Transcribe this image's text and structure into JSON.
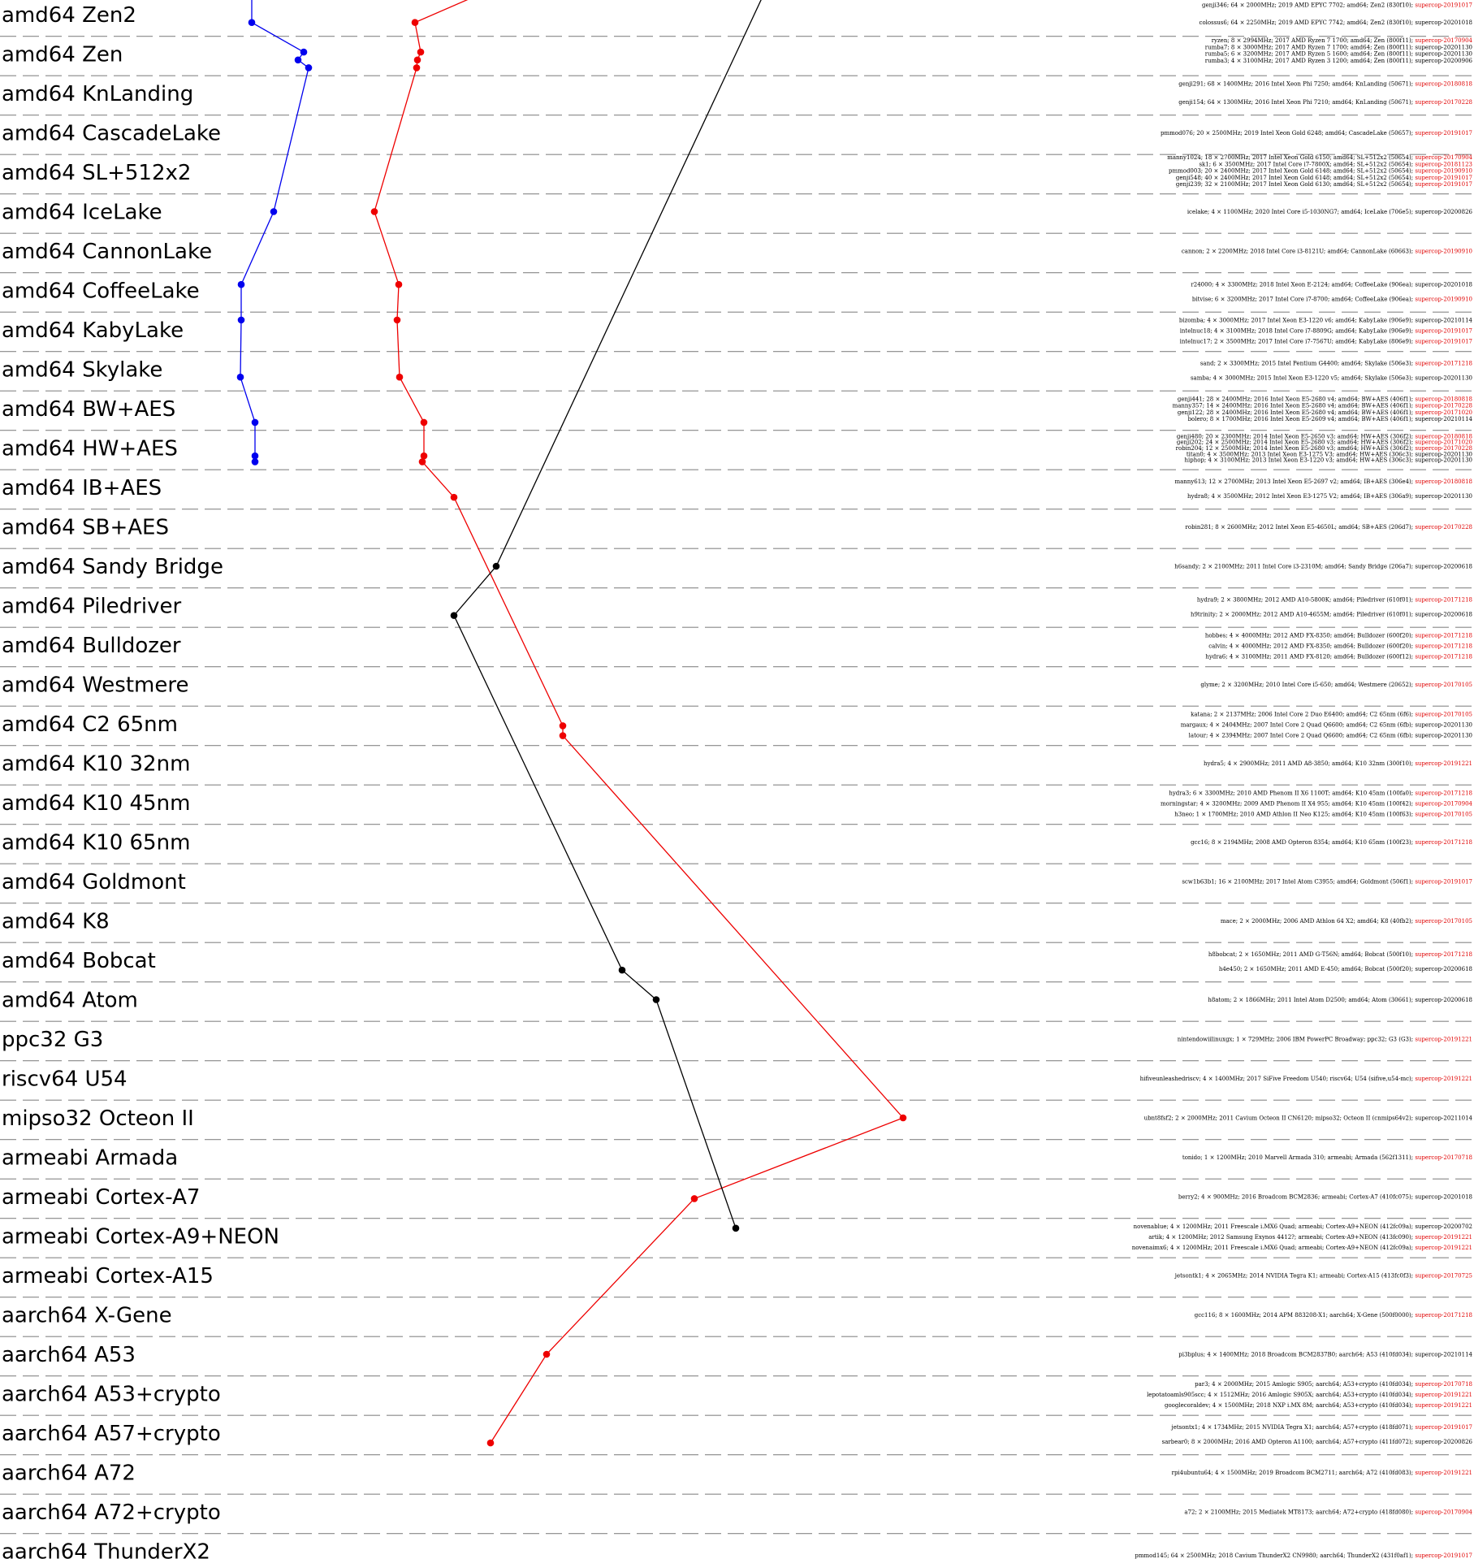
{
  "chart_data": {
    "type": "line",
    "categories": [
      "amd64 Zen2",
      "amd64 Zen",
      "amd64 KnLanding",
      "amd64 CascadeLake",
      "amd64 SL+512x2",
      "amd64 IceLake",
      "amd64 CannonLake",
      "amd64 CoffeeLake",
      "amd64 KabyLake",
      "amd64 Skylake",
      "amd64 BW+AES",
      "amd64 HW+AES",
      "amd64 IB+AES",
      "amd64 SB+AES",
      "amd64 Sandy Bridge",
      "amd64 Piledriver",
      "amd64 Bulldozer",
      "amd64 Westmere",
      "amd64 C2 65nm",
      "amd64 K10 32nm",
      "amd64 K10 45nm",
      "amd64 K10 65nm",
      "amd64 Goldmont",
      "amd64 K8",
      "amd64 Bobcat",
      "amd64 Atom",
      "ppc32 G3",
      "riscv64 U54",
      "mipso32 Octeon II",
      "armeabi Armada",
      "armeabi Cortex-A7",
      "armeabi Cortex-A9+NEON",
      "armeabi Cortex-A15",
      "aarch64 X-Gene",
      "aarch64 A53",
      "aarch64 A53+crypto",
      "aarch64 A57+crypto",
      "aarch64 A72",
      "aarch64 A72+crypto",
      "aarch64 ThunderX2"
    ],
    "series": [
      {
        "color": "#0000ee",
        "points": [
          {
            "c": 0,
            "o": -0.5,
            "v": 310
          },
          {
            "c": 0,
            "o": 0.2,
            "v": 310
          },
          {
            "c": 1,
            "o": -0.05,
            "v": 374
          },
          {
            "c": 1,
            "o": 0.15,
            "v": 367
          },
          {
            "c": 1,
            "o": 0.35,
            "v": 380
          },
          {
            "c": 5,
            "o": 0.0,
            "v": 337
          },
          {
            "c": 7,
            "o": -0.15,
            "v": 297
          },
          {
            "c": 8,
            "o": -0.25,
            "v": 297
          },
          {
            "c": 9,
            "o": 0.2,
            "v": 296
          },
          {
            "c": 10,
            "o": 0.35,
            "v": 314
          },
          {
            "c": 11,
            "o": 0.2,
            "v": 314
          },
          {
            "c": 11,
            "o": 0.35,
            "v": 314
          }
        ]
      },
      {
        "color": "#ee0000",
        "points": [
          {
            "c": 0,
            "o": -0.5,
            "v": 589
          },
          {
            "c": 0,
            "o": 0.2,
            "v": 511
          },
          {
            "c": 1,
            "o": -0.05,
            "v": 518
          },
          {
            "c": 1,
            "o": 0.15,
            "v": 514
          },
          {
            "c": 1,
            "o": 0.35,
            "v": 513
          },
          {
            "c": 5,
            "o": 0.0,
            "v": 461
          },
          {
            "c": 7,
            "o": -0.15,
            "v": 491
          },
          {
            "c": 8,
            "o": -0.25,
            "v": 489
          },
          {
            "c": 9,
            "o": 0.2,
            "v": 492
          },
          {
            "c": 10,
            "o": 0.35,
            "v": 522
          },
          {
            "c": 11,
            "o": 0.2,
            "v": 522
          },
          {
            "c": 11,
            "o": 0.35,
            "v": 520
          },
          {
            "c": 12,
            "o": 0.25,
            "v": 559
          },
          {
            "c": 18,
            "o": 0.05,
            "v": 693
          },
          {
            "c": 18,
            "o": 0.3,
            "v": 693
          },
          {
            "c": 28,
            "o": 0.0,
            "v": 1112
          },
          {
            "c": 30,
            "o": 0.05,
            "v": 855
          },
          {
            "c": 34,
            "o": 0.0,
            "v": 673
          },
          {
            "c": 36,
            "o": 0.25,
            "v": 604
          }
        ]
      },
      {
        "color": "#000000",
        "points": [
          {
            "c": 0,
            "o": -0.5,
            "v": 940
          },
          {
            "c": 14,
            "o": 0.0,
            "v": 611
          },
          {
            "c": 15,
            "o": 0.25,
            "v": 559
          },
          {
            "c": 24,
            "o": 0.25,
            "v": 766
          },
          {
            "c": 25,
            "o": 0.0,
            "v": 808
          },
          {
            "c": 31,
            "o": -0.2,
            "v": 906
          }
        ]
      }
    ],
    "machines": [
      {
        "c": 0,
        "o": -0.25,
        "text": "genji346; 64 × 2000MHz; 2019 AMD EPYC 7702; amd64; Zen2 (830f10); ",
        "ver": "supercop-20191017",
        "red": true
      },
      {
        "c": 0,
        "o": 0.2,
        "text": "colossus6; 64 × 2250MHz; 2019 AMD EPYC 7742; amd64; Zen2 (830f10); ",
        "ver": "supercop-20201018",
        "red": false
      },
      {
        "c": 1,
        "o": -0.35,
        "text": "ryzen; 8 × 2994MHz; 2017 AMD Ryzen 7 1700; amd64; Zen (800f11); ",
        "ver": "supercop-20170904",
        "red": true
      },
      {
        "c": 1,
        "o": -0.18,
        "text": "rumba7; 8 × 3000MHz; 2017 AMD Ryzen 7 1700; amd64; Zen (800f11); ",
        "ver": "supercop-20201130",
        "red": false
      },
      {
        "c": 1,
        "o": -0.01,
        "text": "rumba5; 6 × 3200MHz; 2017 AMD Ryzen 5 1600; amd64; Zen (800f11); ",
        "ver": "supercop-20201130",
        "red": false
      },
      {
        "c": 1,
        "o": 0.16,
        "text": "rumba3; 4 × 3100MHz; 2017 AMD Ryzen 3 1200; amd64; Zen (800f11); ",
        "ver": "supercop-20200906",
        "red": false
      },
      {
        "c": 2,
        "o": -0.25,
        "text": "genji291; 68 × 1400MHz; 2016 Intel Xeon Phi 7250; amd64; KnLanding (50671); ",
        "ver": "supercop-20180818",
        "red": true
      },
      {
        "c": 2,
        "o": 0.22,
        "text": "genji154; 64 × 1300MHz; 2016 Intel Xeon Phi 7210; amd64; KnLanding (50671); ",
        "ver": "supercop-20170228",
        "red": true
      },
      {
        "c": 3,
        "o": 0.0,
        "text": "pmmod076; 20 × 2500MHz; 2019 Intel Xeon Gold 6248; amd64; CascadeLake (50657); ",
        "ver": "supercop-20191017",
        "red": true
      },
      {
        "c": 4,
        "o": -0.38,
        "text": "manny1024; 18 × 2700MHz; 2017 Intel Xeon Gold 6150; amd64; SL+512x2 (50654); ",
        "ver": "supercop-20170904",
        "red": true
      },
      {
        "c": 4,
        "o": -0.21,
        "text": "sk1; 6 × 3500MHz; 2017 Intel Core i7-7800X; amd64; SL+512x2 (50654); ",
        "ver": "supercop-20181123",
        "red": true
      },
      {
        "c": 4,
        "o": -0.04,
        "text": "pmmod003; 20 × 2400MHz; 2017 Intel Xeon Gold 6148; amd64; SL+512x2 (50654); ",
        "ver": "supercop-20190910",
        "red": true
      },
      {
        "c": 4,
        "o": 0.13,
        "text": "genji548; 40 × 2400MHz; 2017 Intel Xeon Gold 6148; amd64; SL+512x2 (50654); ",
        "ver": "supercop-20191017",
        "red": true
      },
      {
        "c": 4,
        "o": 0.3,
        "text": "genji239; 32 × 2100MHz; 2017 Intel Xeon Gold 6130; amd64; SL+512x2 (50654); ",
        "ver": "supercop-20191017",
        "red": true
      },
      {
        "c": 5,
        "o": 0.0,
        "text": "icelake; 4 × 1100MHz; 2020 Intel Core i5-1030NG7; amd64; IceLake (706e5); ",
        "ver": "supercop-20200826",
        "red": false
      },
      {
        "c": 6,
        "o": 0.0,
        "text": "cannon; 2 × 2200MHz; 2018 Intel Core i3-8121U; amd64; CannonLake (60663); ",
        "ver": "supercop-20190910",
        "red": true
      },
      {
        "c": 7,
        "o": -0.15,
        "text": "r24000; 4 × 3300MHz; 2018 Intel Xeon E-2124; amd64; CoffeeLake (906ea); ",
        "ver": "supercop-20201018",
        "red": false
      },
      {
        "c": 7,
        "o": 0.22,
        "text": "bitvise; 6 × 3200MHz; 2017 Intel Core i7-8700; amd64; CoffeeLake (906ea); ",
        "ver": "supercop-20190910",
        "red": true
      },
      {
        "c": 8,
        "o": -0.25,
        "text": "bizomba; 4 × 3000MHz; 2017 Intel Xeon E3-1220 v6; amd64; KabyLake (906e9); ",
        "ver": "supercop-20210114",
        "red": false
      },
      {
        "c": 8,
        "o": 0.02,
        "text": "intelnuc18; 4 × 3100MHz; 2018 Intel Core i7-8809G; amd64; KabyLake (906e9); ",
        "ver": "supercop-20191017",
        "red": true
      },
      {
        "c": 8,
        "o": 0.29,
        "text": "intelnuc17; 2 × 3500MHz; 2017 Intel Core i7-7567U; amd64; KabyLake (806e9); ",
        "ver": "supercop-20191017",
        "red": true
      },
      {
        "c": 9,
        "o": -0.15,
        "text": "sand; 2 × 3300MHz; 2015 Intel Pentium G4400; amd64; Skylake (506e3); ",
        "ver": "supercop-20171218",
        "red": true
      },
      {
        "c": 9,
        "o": 0.22,
        "text": "samba; 4 × 3000MHz; 2015 Intel Xeon E3-1220 v5; amd64; Skylake (506e3); ",
        "ver": "supercop-20201130",
        "red": false
      },
      {
        "c": 10,
        "o": -0.25,
        "text": "genji441; 28 × 2400MHz; 2016 Intel Xeon E5-2680 v4; amd64; BW+AES (406f1); ",
        "ver": "supercop-20180818",
        "red": true
      },
      {
        "c": 10,
        "o": -0.08,
        "text": "manny357; 14 × 2400MHz; 2016 Intel Xeon E5-2680 v4; amd64; BW+AES (406f1); ",
        "ver": "supercop-20170228",
        "red": true
      },
      {
        "c": 10,
        "o": 0.09,
        "text": "genji122; 28 × 2400MHz; 2016 Intel Xeon E5-2680 v4; amd64; BW+AES (406f1); ",
        "ver": "supercop-20171020",
        "red": true
      },
      {
        "c": 10,
        "o": 0.26,
        "text": "bolero; 8 × 1700MHz; 2016 Intel Xeon E5-2609 v4; amd64; BW+AES (406f1); ",
        "ver": "supercop-20210114",
        "red": false
      },
      {
        "c": 11,
        "o": -0.3,
        "text": "genji480; 20 × 2300MHz; 2014 Intel Xeon E5-2650 v3; amd64; HW+AES (306f2); ",
        "ver": "supercop-20180818",
        "red": true
      },
      {
        "c": 11,
        "o": -0.15,
        "text": "genji202; 24 × 2500MHz; 2014 Intel Xeon E5-2680 v3; amd64; HW+AES (306f2); ",
        "ver": "supercop-20171020",
        "red": true
      },
      {
        "c": 11,
        "o": 0.0,
        "text": "robin204; 12 × 2500MHz; 2014 Intel Xeon E5-2680 v3; amd64; HW+AES (306f2); ",
        "ver": "supercop-20170228",
        "red": true
      },
      {
        "c": 11,
        "o": 0.15,
        "text": "titan0; 4 × 3500MHz; 2013 Intel Xeon E3-1275 V3; amd64; HW+AES (306c3); ",
        "ver": "supercop-20201130",
        "red": false
      },
      {
        "c": 11,
        "o": 0.3,
        "text": "hiphop; 4 × 3100MHz; 2013 Intel Xeon E3-1220 v3; amd64; HW+AES (306c3); ",
        "ver": "supercop-20201130",
        "red": false
      },
      {
        "c": 12,
        "o": -0.15,
        "text": "manny613; 12 × 2700MHz; 2013 Intel Xeon E5-2697 v2; amd64; IB+AES (306e4); ",
        "ver": "supercop-20180818",
        "red": true
      },
      {
        "c": 12,
        "o": 0.22,
        "text": "hydra8; 4 × 3500MHz; 2012 Intel Xeon E3-1275 V2; amd64; IB+AES (306a9); ",
        "ver": "supercop-20201130",
        "red": false
      },
      {
        "c": 13,
        "o": 0.0,
        "text": "robin281; 8 × 2600MHz; 2012 Intel Xeon E5-4650L; amd64; SB+AES (206d7); ",
        "ver": "supercop-20170228",
        "red": true
      },
      {
        "c": 14,
        "o": 0.0,
        "text": "h6sandy; 2 × 2100MHz; 2011 Intel Core i3-2310M; amd64; Sandy Bridge (206a7); ",
        "ver": "supercop-20200618",
        "red": false
      },
      {
        "c": 15,
        "o": -0.15,
        "text": "hydra9; 2 × 3800MHz; 2012 AMD A10-5800K; amd64; Piledriver (610f01); ",
        "ver": "supercop-20171218",
        "red": true
      },
      {
        "c": 15,
        "o": 0.22,
        "text": "h9trinity; 2 × 2000MHz; 2012 AMD A10-4655M; amd64; Piledriver (610f01); ",
        "ver": "supercop-20200618",
        "red": false
      },
      {
        "c": 16,
        "o": -0.25,
        "text": "hobbes; 4 × 4000MHz; 2012 AMD FX-8350; amd64; Bulldozer (600f20); ",
        "ver": "supercop-20171218",
        "red": true
      },
      {
        "c": 16,
        "o": 0.02,
        "text": "calvin; 4 × 4000MHz; 2012 AMD FX-8350; amd64; Bulldozer (600f20); ",
        "ver": "supercop-20171218",
        "red": true
      },
      {
        "c": 16,
        "o": 0.29,
        "text": "hydra6; 4 × 3100MHz; 2011 AMD FX-8120; amd64; Bulldozer (600f12); ",
        "ver": "supercop-20171218",
        "red": true
      },
      {
        "c": 17,
        "o": 0.0,
        "text": "glyme; 2 × 3200MHz; 2010 Intel Core i5-650; amd64; Westmere (20652); ",
        "ver": "supercop-20170105",
        "red": true
      },
      {
        "c": 18,
        "o": -0.25,
        "text": "katana; 2 × 2137MHz; 2006 Intel Core 2 Duo E6400; amd64; C2 65nm (6f6); ",
        "ver": "supercop-20170105",
        "red": true
      },
      {
        "c": 18,
        "o": 0.02,
        "text": "margaux; 4 × 2404MHz; 2007 Intel Core 2 Quad Q6600; amd64; C2 65nm (6fb); ",
        "ver": "supercop-20201130",
        "red": false
      },
      {
        "c": 18,
        "o": 0.29,
        "text": "latour; 4 × 2394MHz; 2007 Intel Core 2 Quad Q6600; amd64; C2 65nm (6fb); ",
        "ver": "supercop-20201130",
        "red": false
      },
      {
        "c": 19,
        "o": 0.0,
        "text": "hydra5; 4 × 2900MHz; 2011 AMD A8-3850; amd64; K10 32nm (300f10); ",
        "ver": "supercop-20191221",
        "red": true
      },
      {
        "c": 20,
        "o": -0.25,
        "text": "hydra3; 6 × 3300MHz; 2010 AMD Phenom II X6 1100T; amd64; K10 45nm (100fa0); ",
        "ver": "supercop-20171218",
        "red": true
      },
      {
        "c": 20,
        "o": 0.02,
        "text": "morningstar; 4 × 3200MHz; 2009 AMD Phenom II X4 955; amd64; K10 45nm (100f42); ",
        "ver": "supercop-20170904",
        "red": true
      },
      {
        "c": 20,
        "o": 0.29,
        "text": "h3neo; 1 × 1700MHz; 2010 AMD Athlon II Neo K125; amd64; K10 45nm (100f63); ",
        "ver": "supercop-20170105",
        "red": true
      },
      {
        "c": 21,
        "o": 0.0,
        "text": "gcc16; 8 × 2194MHz; 2008 AMD Opteron 8354; amd64; K10 65nm (100f23); ",
        "ver": "supercop-20171218",
        "red": true
      },
      {
        "c": 22,
        "o": 0.0,
        "text": "scw1b63b1; 16 × 2100MHz; 2017 Intel Atom C3955; amd64; Goldmont (506f1); ",
        "ver": "supercop-20191017",
        "red": true
      },
      {
        "c": 23,
        "o": 0.0,
        "text": "mace; 2 × 2000MHz; 2006 AMD Athlon 64 X2; amd64; K8 (40fb2); ",
        "ver": "supercop-20170105",
        "red": true
      },
      {
        "c": 24,
        "o": -0.15,
        "text": "h8bobcat; 2 × 1650MHz; 2011 AMD G-T56N; amd64; Bobcat (500f10); ",
        "ver": "supercop-20171218",
        "red": true
      },
      {
        "c": 24,
        "o": 0.22,
        "text": "h4e450; 2 × 1650MHz; 2011 AMD E-450; amd64; Bobcat (500f20); ",
        "ver": "supercop-20200618",
        "red": false
      },
      {
        "c": 25,
        "o": 0.0,
        "text": "h8atom; 2 × 1866MHz; 2011 Intel Atom D2500; amd64; Atom (30661); ",
        "ver": "supercop-20200618",
        "red": false
      },
      {
        "c": 26,
        "o": 0.0,
        "text": "nintendowiilinuxgx; 1 × 729MHz; 2006 IBM PowerPC Broadway; ppc32; G3 (G3); ",
        "ver": "supercop-20191221",
        "red": true
      },
      {
        "c": 27,
        "o": 0.0,
        "text": "hifiveunleashedriscv; 4 × 1400MHz; 2017 SiFive Freedom U540; riscv64; U54 (sifive,u54-mc); ",
        "ver": "supercop-20191221",
        "red": true
      },
      {
        "c": 28,
        "o": 0.0,
        "text": "ubnt8fsf2; 2 × 2000MHz; 2011 Cavium Octeon II CN6120; mipso32; Octeon II (cnmips64v2); ",
        "ver": "supercop-20211014",
        "red": false
      },
      {
        "c": 29,
        "o": 0.0,
        "text": "tonido; 1 × 1200MHz; 2010 Marvell Armada 310; armeabi; Armada (562f1311); ",
        "ver": "supercop-20170718",
        "red": true
      },
      {
        "c": 30,
        "o": 0.0,
        "text": "berry2; 4 × 900MHz; 2016 Broadcom BCM2836; armeabi; Cortex-A7 (410fc075); ",
        "ver": "supercop-20201018",
        "red": false
      },
      {
        "c": 31,
        "o": -0.25,
        "text": "novenablue; 4 × 1200MHz; 2011 Freescale i.MX6 Quad; armeabi; Cortex-A9+NEON (412fc09a); ",
        "ver": "supercop-20200702",
        "red": false
      },
      {
        "c": 31,
        "o": 0.02,
        "text": "artik; 4 × 1200MHz; 2012 Samsung Exynos 4412?; armeabi; Cortex-A9+NEON (413fc090); ",
        "ver": "supercop-20191221",
        "red": true
      },
      {
        "c": 31,
        "o": 0.29,
        "text": "novenaimx6; 4 × 1200MHz; 2011 Freescale i.MX6 Quad; armeabi; Cortex-A9+NEON (412fc09a); ",
        "ver": "supercop-20191221",
        "red": true
      },
      {
        "c": 32,
        "o": 0.0,
        "text": "jetsontk1; 4 × 2065MHz; 2014 NVIDIA Tegra K1; armeabi; Cortex-A15 (413fc0f3); ",
        "ver": "supercop-20170725",
        "red": true
      },
      {
        "c": 33,
        "o": 0.0,
        "text": "gcc116; 8 × 1600MHz; 2014 APM 883208-X1; aarch64; X-Gene (500f0000); ",
        "ver": "supercop-20171218",
        "red": true
      },
      {
        "c": 34,
        "o": 0.0,
        "text": "pi3bplus; 4 × 1400MHz; 2018 Broadcom BCM2837B0; aarch64; A53 (410fd034); ",
        "ver": "supercop-20210114",
        "red": false
      },
      {
        "c": 35,
        "o": -0.25,
        "text": "par3; 4 × 2000MHz; 2015 Amlogic S905; aarch64; A53+crypto (410fd034); ",
        "ver": "supercop-20170718",
        "red": true
      },
      {
        "c": 35,
        "o": 0.02,
        "text": "lepotatoamls905scc; 4 × 1512MHz; 2016 Amlogic S905X; aarch64; A53+crypto (410fd034); ",
        "ver": "supercop-20191221",
        "red": true
      },
      {
        "c": 35,
        "o": 0.29,
        "text": "googlecoraldev; 4 × 1500MHz; 2018 NXP i.MX 8M; aarch64; A53+crypto (410fd034); ",
        "ver": "supercop-20191221",
        "red": true
      },
      {
        "c": 36,
        "o": -0.15,
        "text": "jetsontx1; 4 × 1734MHz; 2015 NVIDIA Tegra X1; aarch64; A57+crypto (418fd071); ",
        "ver": "supercop-20191017",
        "red": true
      },
      {
        "c": 36,
        "o": 0.22,
        "text": "sarbear0; 8 × 2000MHz; 2016 AMD Opteron A1100; aarch64; A57+crypto (411fd072); ",
        "ver": "supercop-20200826",
        "red": false
      },
      {
        "c": 37,
        "o": 0.0,
        "text": "rpi4ubuntu64; 4 × 1500MHz; 2019 Broadcom BCM2711; aarch64; A72 (410fd083); ",
        "ver": "supercop-20191221",
        "red": true
      },
      {
        "c": 38,
        "o": 0.0,
        "text": "a72; 2 × 2100MHz; 2015 Mediatek MT8173; aarch64; A72+crypto (418fd080); ",
        "ver": "supercop-20170904",
        "red": true
      },
      {
        "c": 39,
        "o": 0.1,
        "text": "pmmod145; 64 × 2500MHz; 2018 Cavium ThunderX2 CN9980; aarch64; ThunderX2 (431f0af1); ",
        "ver": "supercop-20191017",
        "red": true
      }
    ]
  }
}
